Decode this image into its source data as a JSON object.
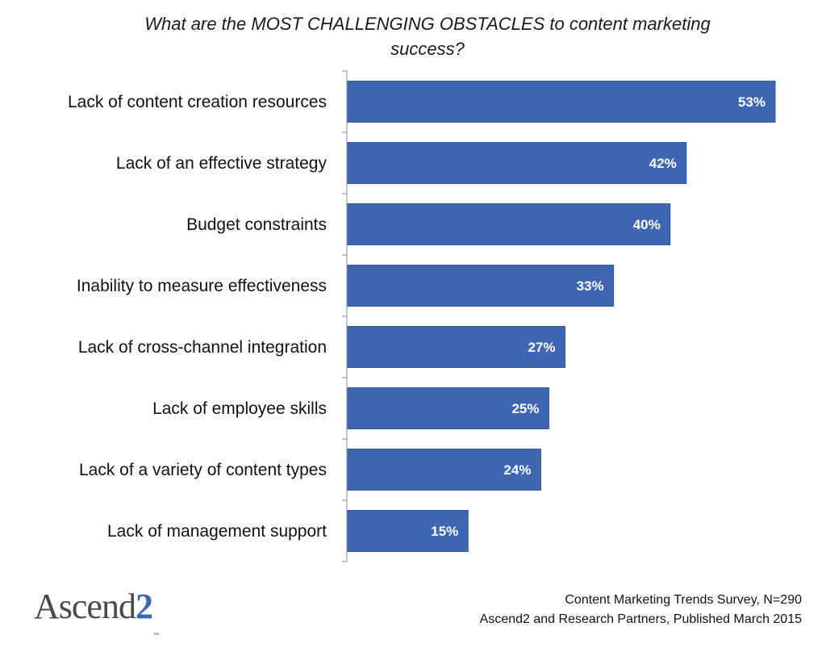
{
  "chart_data": {
    "type": "bar",
    "orientation": "horizontal",
    "title": "What are the MOST CHALLENGING OBSTACLES to content marketing success?",
    "categories": [
      "Lack of content creation resources",
      "Lack of an effective strategy",
      "Budget constraints",
      "Inability to measure effectiveness",
      "Lack of cross-channel integration",
      "Lack of employee skills",
      "Lack of a variety of content types",
      "Lack of management support"
    ],
    "values": [
      53,
      42,
      40,
      33,
      27,
      25,
      24,
      15
    ],
    "value_labels": [
      "53%",
      "42%",
      "40%",
      "33%",
      "27%",
      "25%",
      "24%",
      "15%"
    ],
    "unit": "%",
    "xlim": [
      0,
      53
    ],
    "grid": false,
    "bar_color": "#3f67b1"
  },
  "source": {
    "line1": "Content Marketing Trends Survey, N=290",
    "line2": "Ascend2 and Research Partners, Published March 2015"
  },
  "logo": {
    "text": "Ascend",
    "highlight": "2",
    "mark": "™"
  },
  "colors": {
    "bar": "#3f67b1",
    "bar_edge": "#36599a",
    "axis": "#8c8c8c"
  }
}
